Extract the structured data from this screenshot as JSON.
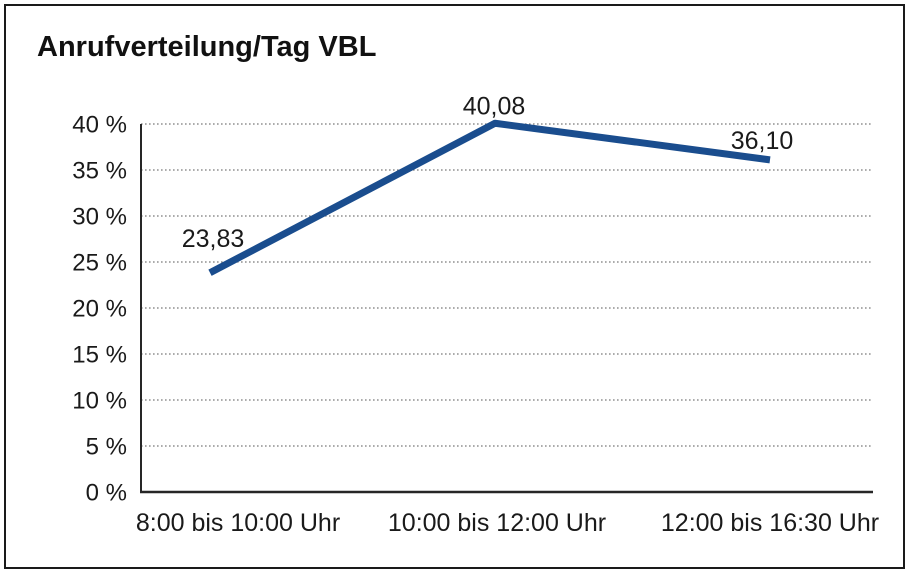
{
  "figure": {
    "title": "Anrufverteilung/Tag VBL"
  },
  "chart_data": {
    "type": "line",
    "title": "Anrufverteilung/Tag VBL",
    "categories": [
      "8:00 bis 10:00 Uhr",
      "10:00 bis 12:00 Uhr",
      "12:00 bis 16:30 Uhr"
    ],
    "values": [
      23.83,
      40.08,
      36.1
    ],
    "value_labels": [
      "23,83",
      "40,08",
      "36,10"
    ],
    "unit": "%",
    "y_ticks": [
      "0 %",
      "5 %",
      "10 %",
      "15 %",
      "20 %",
      "25 %",
      "30 %",
      "35 %",
      "40 %"
    ],
    "y_tick_values": [
      0,
      5,
      10,
      15,
      20,
      25,
      30,
      35,
      40
    ],
    "ylim": [
      0,
      40
    ],
    "xlabel": "",
    "ylabel": "",
    "grid": "horizontal-dotted",
    "legend": "none",
    "colors": {
      "line": "#1a4d8e",
      "grid": "#7a7a7a",
      "axis": "#262626",
      "text": "#1a1a1a",
      "border": "#1a1a1a",
      "background": "#ffffff"
    }
  }
}
